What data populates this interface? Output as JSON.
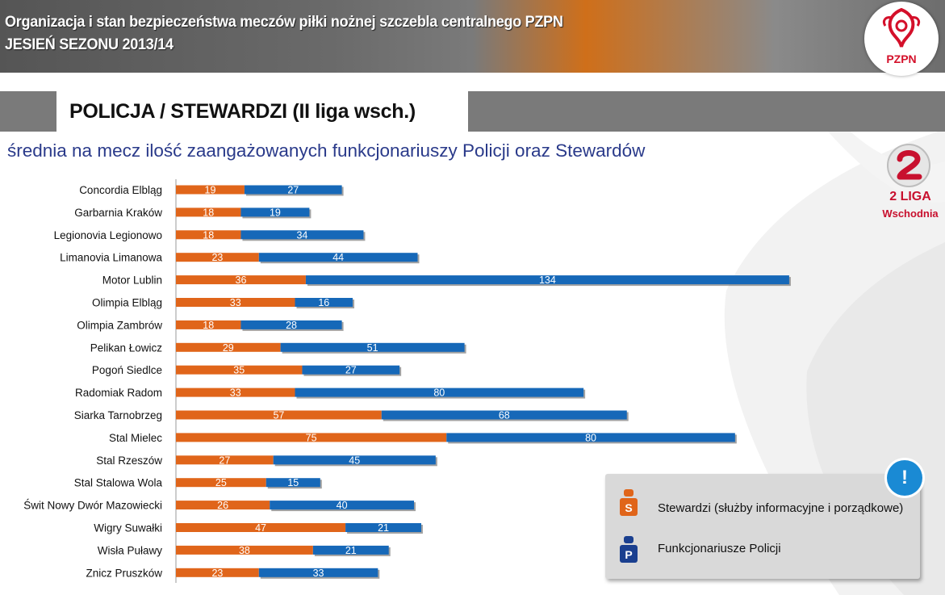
{
  "header": {
    "title_line1": "Organizacja i stan bezpieczeństwa meczów piłki nożnej szczebla centralnego PZPN",
    "title_line2": "JESIEŃ SEZONU 2013/14",
    "logo_text": "PZPN"
  },
  "section": {
    "title": "POLICJA / STEWARDZI (II liga wsch.)"
  },
  "subtitle": "średnia na mecz ilość zaangażowanych funkcjonariuszy Policji oraz Stewardów",
  "league_logo": {
    "line1": "2 LIGA",
    "line2": "Wschodnia"
  },
  "legend": {
    "stewards_label": "Stewardzi (służby informacyjne i porządkowe)",
    "stewards_icon_letter": "S",
    "police_label": "Funkcjonariusze Policji",
    "police_icon_letter": "P",
    "info_icon": "!"
  },
  "colors": {
    "stewards": "#e0651a",
    "police": "#1668b8",
    "header_text": "#ffffff",
    "subtitle": "#2a3a8a"
  },
  "chart_data": {
    "type": "bar",
    "orientation": "horizontal",
    "stacked": true,
    "categories": [
      "Concordia Elbląg",
      "Garbarnia Kraków",
      "Legionovia Legionowo",
      "Limanovia Limanowa",
      "Motor Lublin",
      "Olimpia Elbląg",
      "Olimpia Zambrów",
      "Pelikan Łowicz",
      "Pogoń Siedlce",
      "Radomiak Radom",
      "Siarka Tarnobrzeg",
      "Stal Mielec",
      "Stal Rzeszów",
      "Stal Stalowa Wola",
      "Świt Nowy Dwór Mazowiecki",
      "Wigry Suwałki",
      "Wisła Puławy",
      "Znicz Pruszków"
    ],
    "series": [
      {
        "name": "Stewardzi (służby informacyjne i porządkowe)",
        "color": "#e0651a",
        "values": [
          19,
          18,
          18,
          23,
          36,
          33,
          18,
          29,
          35,
          33,
          57,
          75,
          27,
          25,
          26,
          47,
          38,
          23
        ]
      },
      {
        "name": "Funkcjonariusze Policji",
        "color": "#1668b8",
        "values": [
          27,
          19,
          34,
          44,
          134,
          16,
          28,
          51,
          27,
          80,
          68,
          80,
          45,
          15,
          40,
          21,
          21,
          33
        ]
      }
    ],
    "data_labels": true,
    "grid": false,
    "legend_position": "bottom-right"
  }
}
